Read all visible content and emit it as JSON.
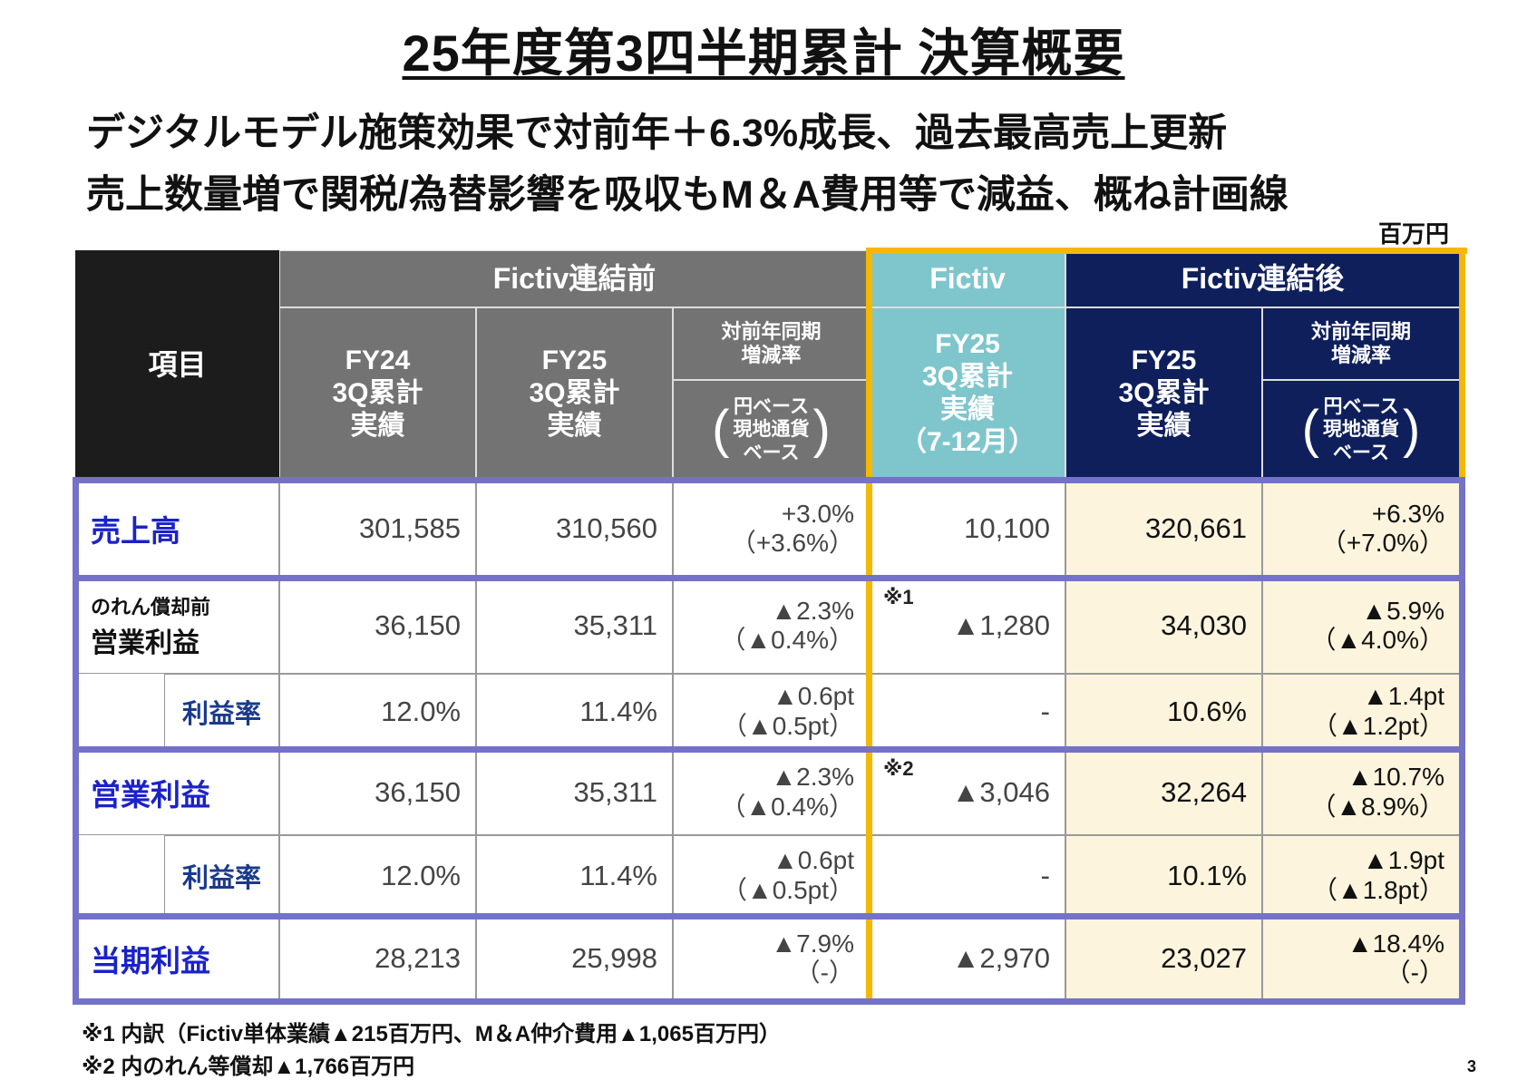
{
  "title": "25年度第3四半期累計 決算概要",
  "subtitle": [
    "デジタルモデル施策効果で対前年＋6.3%成長、過去最高売上更新",
    "売上数量増で関税/為替影響を吸収もM＆A費用等で減益、概ね計画線"
  ],
  "unit": "百万円",
  "colors": {
    "header_black": "#1c1c1c",
    "header_gray": "#737373",
    "fictiv_teal": "#7fc6cc",
    "navy": "#0e1f5c",
    "purple_border": "#7472c8",
    "yellow_border": "#f5b800",
    "cream": "#fdf4dd",
    "label_blue": "#1a22c8"
  },
  "header": {
    "item": "項目",
    "group_before": "Fictiv連結前",
    "group_fictiv": "Fictiv",
    "group_after": "Fictiv連結後",
    "fy24": [
      "FY24",
      "3Q累計",
      "実績"
    ],
    "fy25": [
      "FY25",
      "3Q累計",
      "実績"
    ],
    "fictiv": [
      "FY25",
      "3Q累計",
      "実績",
      "（7-12月）"
    ],
    "yoy": [
      "対前年同期",
      "増減率"
    ],
    "yoy_basis": [
      "円ベース",
      "現地通貨",
      "ベース"
    ]
  },
  "rows": [
    {
      "label": "売上高",
      "values": [
        [
          "301,585"
        ],
        [
          "310,560"
        ],
        [
          "+3.0%",
          "（+3.6%）"
        ],
        [
          "10,100"
        ],
        [
          "320,661"
        ],
        [
          "+6.3%",
          "（+7.0%）"
        ]
      ]
    },
    {
      "label_small": "のれん償却前",
      "label": "営業利益",
      "note": "※1",
      "values": [
        [
          "36,150"
        ],
        [
          "35,311"
        ],
        [
          "▲2.3%",
          "（▲0.4%）"
        ],
        [
          "▲1,280"
        ],
        [
          "34,030"
        ],
        [
          "▲5.9%",
          "（▲4.0%）"
        ]
      ]
    },
    {
      "label": "利益率",
      "values": [
        [
          "12.0%"
        ],
        [
          "11.4%"
        ],
        [
          "▲0.6pt",
          "（▲0.5pt）"
        ],
        [
          "-"
        ],
        [
          "10.6%"
        ],
        [
          "▲1.4pt",
          "（▲1.2pt）"
        ]
      ]
    },
    {
      "label": "営業利益",
      "note": "※2",
      "values": [
        [
          "36,150"
        ],
        [
          "35,311"
        ],
        [
          "▲2.3%",
          "（▲0.4%）"
        ],
        [
          "▲3,046"
        ],
        [
          "32,264"
        ],
        [
          "▲10.7%",
          "（▲8.9%）"
        ]
      ]
    },
    {
      "label": "利益率",
      "values": [
        [
          "12.0%"
        ],
        [
          "11.4%"
        ],
        [
          "▲0.6pt",
          "（▲0.5pt）"
        ],
        [
          "-"
        ],
        [
          "10.1%"
        ],
        [
          "▲1.9pt",
          "（▲1.8pt）"
        ]
      ]
    },
    {
      "label": "当期利益",
      "values": [
        [
          "28,213"
        ],
        [
          "25,998"
        ],
        [
          "▲7.9%",
          "（-）"
        ],
        [
          "▲2,970"
        ],
        [
          "23,027"
        ],
        [
          "▲18.4%",
          "（-）"
        ]
      ]
    }
  ],
  "footnotes": [
    "※1 内訳（Fictiv単体業績▲215百万円、M＆A仲介費用▲1,065百万円）",
    "※2 内のれん等償却▲1,766百万円"
  ],
  "page_number": "3"
}
